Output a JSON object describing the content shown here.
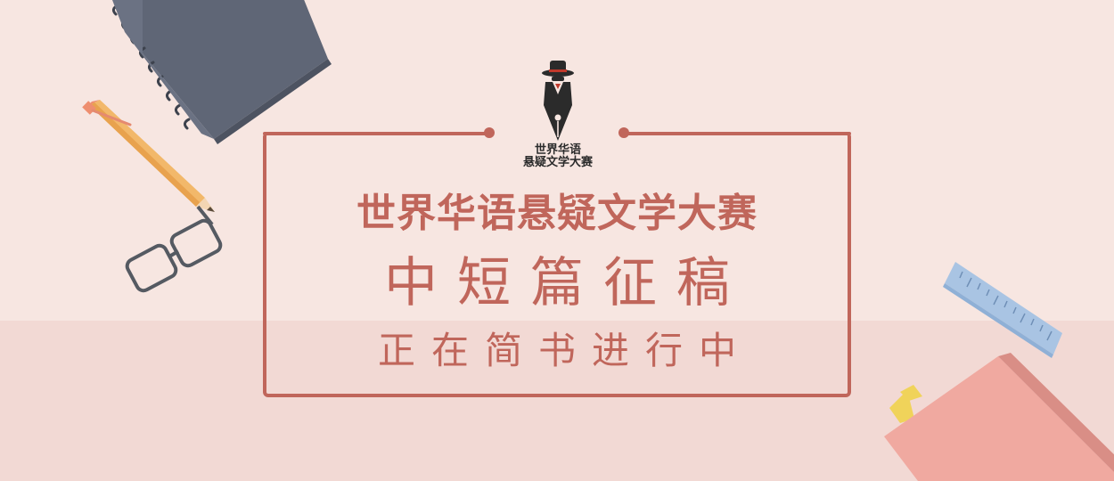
{
  "logo": {
    "line1": "世界华语",
    "line2": "悬疑文学大赛"
  },
  "banner": {
    "title": "世界华语悬疑文学大赛",
    "subtitle": "中短篇征稿",
    "tagline": "正在简书进行中"
  },
  "colors": {
    "background": "#f7e6e1",
    "floor": "#f2d9d4",
    "accent": "#c0665b",
    "notebook": "#5f6676",
    "pencil": "#f2b86a",
    "ruler": "#a9c4e3",
    "book": "#f0a9a0",
    "bookmark": "#f0d35a"
  },
  "icons": {
    "logo": "detective-pen-icon",
    "notebook": "spiral-notebook-icon",
    "pencil": "pencil-icon",
    "glasses": "glasses-icon",
    "ruler": "ruler-icon",
    "book": "book-icon"
  }
}
